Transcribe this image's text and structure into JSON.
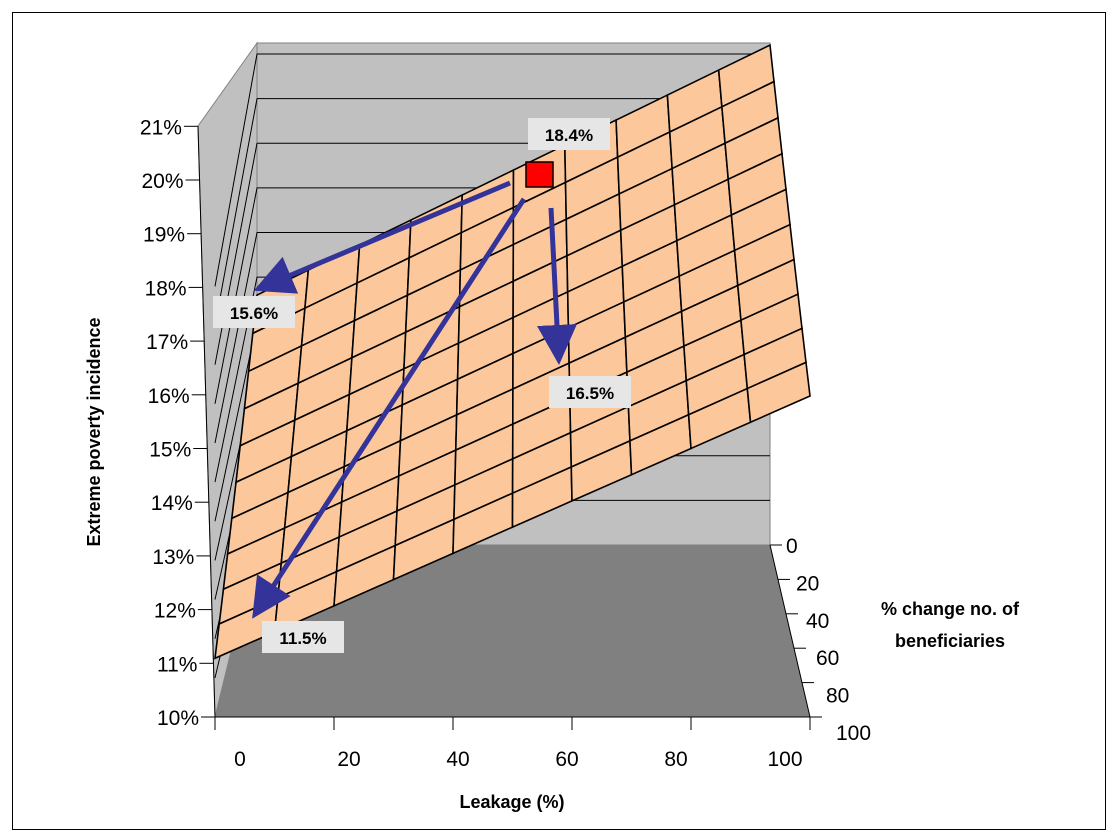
{
  "chart_data": {
    "type": "surface",
    "title": "",
    "xlabel": "Leakage (%)",
    "ylabel": "Extreme poverty incidence",
    "zlabel": "% change no. of beneficiaries",
    "zlabel_lines": [
      "% change no. of",
      "beneficiaries"
    ],
    "x_ticks": [
      "0",
      "20",
      "40",
      "60",
      "80",
      "100"
    ],
    "y_ticks": [
      "10%",
      "11%",
      "12%",
      "13%",
      "14%",
      "15%",
      "16%",
      "17%",
      "18%",
      "19%",
      "20%",
      "21%"
    ],
    "depth_ticks": [
      "0",
      "20",
      "40",
      "60",
      "80",
      "100"
    ],
    "xlim": [
      0,
      100
    ],
    "ylim": [
      10,
      21
    ],
    "depth_lim": [
      0,
      100
    ],
    "grid": true,
    "surface_color": "#fcc89b",
    "wall_color": "#c0c0c0",
    "floor_color": "#808080",
    "arrow_color": "#333399",
    "marker_color": "#ff0000",
    "surface_corners": [
      {
        "leakage": 0,
        "change": 0,
        "poverty": 15.6
      },
      {
        "leakage": 100,
        "change": 0,
        "poverty": 21.2
      },
      {
        "leakage": 100,
        "change": 100,
        "poverty": 18.2
      },
      {
        "leakage": 0,
        "change": 100,
        "poverty": 11.5
      }
    ],
    "annotations": [
      {
        "label": "18.4%",
        "leakage": 55,
        "change": 0,
        "poverty": 18.4,
        "kind": "start"
      },
      {
        "label": "15.6%",
        "leakage": 0,
        "change": 0,
        "poverty": 15.6,
        "kind": "end"
      },
      {
        "label": "16.5%",
        "leakage": 55,
        "change": 40,
        "poverty": 16.5,
        "kind": "end"
      },
      {
        "label": "11.5%",
        "leakage": 0,
        "change": 100,
        "poverty": 11.5,
        "kind": "end"
      }
    ]
  }
}
